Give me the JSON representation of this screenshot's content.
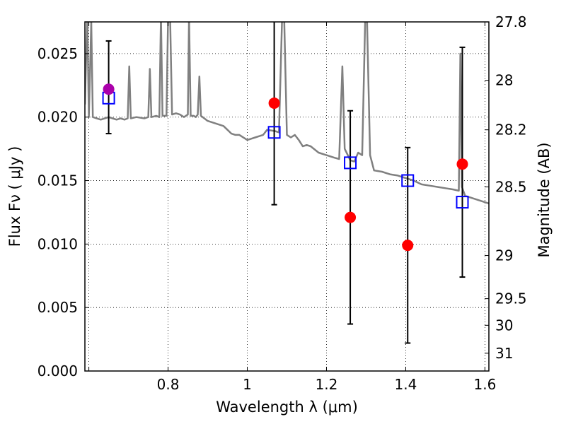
{
  "chart_data": {
    "type": "scatter",
    "title": "",
    "xlabel": "Wavelength  λ (μm)",
    "ylabel": "Flux  Fν  ( μJy )",
    "y2label": "Magnitude (AB)",
    "xlim": [
      0.59,
      1.61
    ],
    "ylim": [
      0.0,
      0.0275
    ],
    "grid": true,
    "x_ticks": [
      {
        "value": 0.6,
        "label": ""
      },
      {
        "value": 0.8,
        "label": "0.8"
      },
      {
        "value": 1.0,
        "label": "1"
      },
      {
        "value": 1.2,
        "label": "1.2"
      },
      {
        "value": 1.4,
        "label": "1.4"
      },
      {
        "value": 1.6,
        "label": "1.6"
      }
    ],
    "y_ticks": [
      {
        "value": 0.0,
        "label": "0.000"
      },
      {
        "value": 0.005,
        "label": "0.005"
      },
      {
        "value": 0.01,
        "label": "0.010"
      },
      {
        "value": 0.015,
        "label": "0.015"
      },
      {
        "value": 0.02,
        "label": "0.020"
      },
      {
        "value": 0.025,
        "label": "0.025"
      }
    ],
    "y2_ticks": [
      {
        "flux": 0.0275,
        "label": "27.8"
      },
      {
        "flux": 0.0229,
        "label": "28"
      },
      {
        "flux": 0.019,
        "label": "28.2"
      },
      {
        "flux": 0.0145,
        "label": "28.5"
      },
      {
        "flux": 0.0091,
        "label": "29"
      },
      {
        "flux": 0.0057,
        "label": "29.5"
      },
      {
        "flux": 0.0036,
        "label": "30"
      },
      {
        "flux": 0.0014,
        "label": "31"
      }
    ],
    "series": [
      {
        "kind": "line",
        "color": "#808080",
        "points": [
          [
            0.59,
            0.021
          ],
          [
            0.596,
            0.028
          ],
          [
            0.6,
            0.02
          ],
          [
            0.606,
            0.0275
          ],
          [
            0.61,
            0.02
          ],
          [
            0.62,
            0.0199
          ],
          [
            0.63,
            0.0198
          ],
          [
            0.64,
            0.0199
          ],
          [
            0.65,
            0.02
          ],
          [
            0.66,
            0.0199
          ],
          [
            0.67,
            0.0198
          ],
          [
            0.68,
            0.0199
          ],
          [
            0.69,
            0.0198
          ],
          [
            0.698,
            0.0199
          ],
          [
            0.702,
            0.024
          ],
          [
            0.706,
            0.0199
          ],
          [
            0.72,
            0.02
          ],
          [
            0.74,
            0.0199
          ],
          [
            0.75,
            0.02
          ],
          [
            0.754,
            0.0238
          ],
          [
            0.758,
            0.02
          ],
          [
            0.77,
            0.0201
          ],
          [
            0.778,
            0.02
          ],
          [
            0.782,
            0.028
          ],
          [
            0.786,
            0.0201
          ],
          [
            0.796,
            0.0201
          ],
          [
            0.8,
            0.028
          ],
          [
            0.805,
            0.028
          ],
          [
            0.81,
            0.0202
          ],
          [
            0.82,
            0.0203
          ],
          [
            0.83,
            0.0202
          ],
          [
            0.84,
            0.02
          ],
          [
            0.85,
            0.0202
          ],
          [
            0.853,
            0.028
          ],
          [
            0.857,
            0.0201
          ],
          [
            0.865,
            0.0201
          ],
          [
            0.87,
            0.02
          ],
          [
            0.875,
            0.0202
          ],
          [
            0.879,
            0.0232
          ],
          [
            0.883,
            0.0201
          ],
          [
            0.9,
            0.0197
          ],
          [
            0.92,
            0.0195
          ],
          [
            0.94,
            0.0193
          ],
          [
            0.95,
            0.019
          ],
          [
            0.96,
            0.0187
          ],
          [
            0.97,
            0.0186
          ],
          [
            0.98,
            0.0186
          ],
          [
            1.0,
            0.0182
          ],
          [
            1.01,
            0.0183
          ],
          [
            1.02,
            0.0184
          ],
          [
            1.03,
            0.0185
          ],
          [
            1.04,
            0.0186
          ],
          [
            1.05,
            0.019
          ],
          [
            1.07,
            0.0189
          ],
          [
            1.08,
            0.0188
          ],
          [
            1.088,
            0.028
          ],
          [
            1.093,
            0.028
          ],
          [
            1.1,
            0.0186
          ],
          [
            1.11,
            0.0184
          ],
          [
            1.12,
            0.0186
          ],
          [
            1.13,
            0.0182
          ],
          [
            1.14,
            0.0177
          ],
          [
            1.15,
            0.0178
          ],
          [
            1.16,
            0.0177
          ],
          [
            1.18,
            0.0172
          ],
          [
            1.2,
            0.017
          ],
          [
            1.22,
            0.0168
          ],
          [
            1.232,
            0.0167
          ],
          [
            1.24,
            0.024
          ],
          [
            1.246,
            0.0175
          ],
          [
            1.26,
            0.0166
          ],
          [
            1.27,
            0.0165
          ],
          [
            1.28,
            0.0172
          ],
          [
            1.29,
            0.017
          ],
          [
            1.298,
            0.028
          ],
          [
            1.302,
            0.028
          ],
          [
            1.31,
            0.017
          ],
          [
            1.32,
            0.0158
          ],
          [
            1.34,
            0.0157
          ],
          [
            1.36,
            0.0155
          ],
          [
            1.38,
            0.0154
          ],
          [
            1.4,
            0.0152
          ],
          [
            1.42,
            0.015
          ],
          [
            1.44,
            0.0147
          ],
          [
            1.46,
            0.0146
          ],
          [
            1.48,
            0.0145
          ],
          [
            1.5,
            0.0144
          ],
          [
            1.52,
            0.0143
          ],
          [
            1.534,
            0.0142
          ],
          [
            1.538,
            0.025
          ],
          [
            1.542,
            0.0145
          ],
          [
            1.55,
            0.0138
          ],
          [
            1.57,
            0.0136
          ],
          [
            1.59,
            0.0134
          ],
          [
            1.61,
            0.0132
          ]
        ]
      },
      {
        "kind": "errorbar",
        "color": "#000000",
        "points": [
          {
            "x": 0.65,
            "low": 0.0187,
            "high": 0.026
          },
          {
            "x": 1.068,
            "low": 0.0131,
            "high": 0.0285
          },
          {
            "x": 1.26,
            "low": 0.0037,
            "high": 0.0205
          },
          {
            "x": 1.405,
            "low": 0.0022,
            "high": 0.0176
          },
          {
            "x": 1.543,
            "low": 0.0074,
            "high": 0.0255
          }
        ]
      },
      {
        "kind": "square",
        "color": "#0000ff",
        "points": [
          [
            0.65,
            0.0215
          ],
          [
            1.068,
            0.0188
          ],
          [
            1.26,
            0.0164
          ],
          [
            1.405,
            0.015
          ],
          [
            1.543,
            0.0133
          ]
        ]
      },
      {
        "kind": "circle",
        "color": "#ff0000",
        "points": [
          [
            1.068,
            0.0211
          ],
          [
            1.26,
            0.0121
          ],
          [
            1.405,
            0.0099
          ],
          [
            1.543,
            0.0163
          ]
        ]
      },
      {
        "kind": "circle",
        "color": "#aa00aa",
        "points": [
          [
            0.65,
            0.0222
          ]
        ]
      }
    ]
  }
}
